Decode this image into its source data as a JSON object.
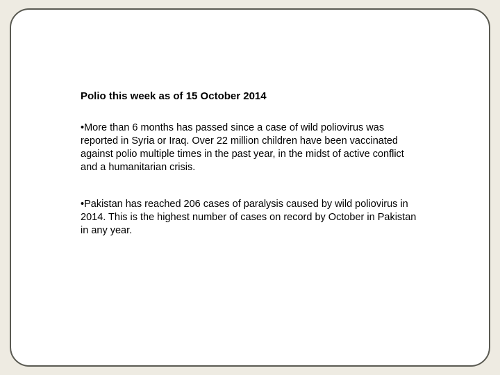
{
  "background_color": "#eeebe2",
  "frame": {
    "border_color": "#5a5a52",
    "background_color": "#ffffff",
    "border_radius": 28,
    "border_width": 2
  },
  "title": {
    "text": "Polio this week as of 15 October 2014",
    "font_size": 15,
    "font_weight": "bold",
    "color": "#000000"
  },
  "bullets": [
    {
      "text": "More than 6 months has passed since a case of wild poliovirus was reported in Syria or Iraq. Over 22 million children have been vaccinated against polio multiple times in the past year, in the midst of active conflict and a humanitarian crisis."
    },
    {
      "text": "Pakistan has reached 206 cases of paralysis caused by wild poliovirus in 2014. This is the highest number of cases on record by October in Pakistan in any year."
    }
  ],
  "body_style": {
    "font_size": 14.5,
    "color": "#000000",
    "line_height": 1.32
  }
}
